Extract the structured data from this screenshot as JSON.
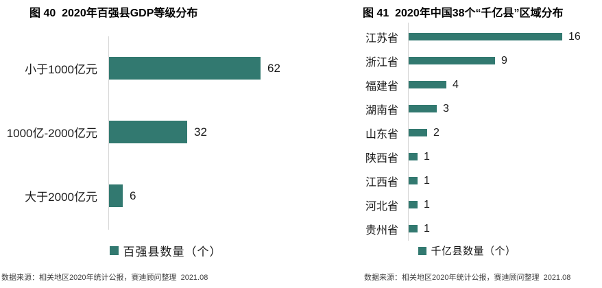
{
  "colors": {
    "bar": "#327970",
    "axis": "#d6d6d6",
    "title_text": "#000000",
    "label_text": "#1a1a1a",
    "source_text": "#3d3d3d",
    "background": "#ffffff"
  },
  "chart_data": [
    {
      "type": "bar",
      "orientation": "horizontal",
      "title": "图 40  2020年百强县GDP等级分布",
      "categories": [
        "小于1000亿元",
        "1000亿-2000亿元",
        "大于2000亿元"
      ],
      "values": [
        62,
        32,
        6
      ],
      "xlim": [
        0,
        62
      ],
      "grid": false,
      "value_labels": true,
      "legend": [
        "百强县数量（个）"
      ],
      "legend_position": "bottom",
      "source": "数据来源：相关地区2020年统计公报，赛迪顾问整理  2021.08"
    },
    {
      "type": "bar",
      "orientation": "horizontal",
      "title": "图 41  2020年中国38个“千亿县”区域分布",
      "categories": [
        "江苏省",
        "浙江省",
        "福建省",
        "湖南省",
        "山东省",
        "陕西省",
        "江西省",
        "河北省",
        "贵州省"
      ],
      "values": [
        16,
        9,
        4,
        3,
        2,
        1,
        1,
        1,
        1
      ],
      "xlim": [
        0,
        16
      ],
      "grid": false,
      "value_labels": true,
      "legend": [
        "千亿县数量（个）"
      ],
      "legend_position": "bottom",
      "source": "数据来源：相关地区2020年统计公报，赛迪顾问整理  2021.08"
    }
  ]
}
